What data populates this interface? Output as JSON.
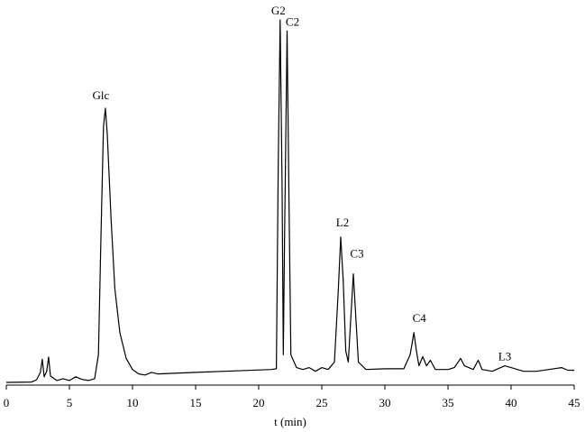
{
  "chart_data": {
    "type": "line",
    "title": "",
    "xlabel": "t (min)",
    "ylabel": "",
    "xlim": [
      0,
      45
    ],
    "ylim": [
      0,
      100
    ],
    "x_ticks": [
      "0",
      "5",
      "10",
      "15",
      "20",
      "25",
      "30",
      "35",
      "40",
      "45"
    ],
    "grid": false,
    "legend": "none",
    "line_color": "#000000",
    "series": [
      {
        "points": [
          [
            0.0,
            0.5
          ],
          [
            2.0,
            0.6
          ],
          [
            2.4,
            1.2
          ],
          [
            2.7,
            3.2
          ],
          [
            2.85,
            6.8
          ],
          [
            3.0,
            2.0
          ],
          [
            3.2,
            3.5
          ],
          [
            3.35,
            7.4
          ],
          [
            3.5,
            2.2
          ],
          [
            4.0,
            1.0
          ],
          [
            4.5,
            1.5
          ],
          [
            5.0,
            1.0
          ],
          [
            5.5,
            2.0
          ],
          [
            6.0,
            1.3
          ],
          [
            6.5,
            1.0
          ],
          [
            7.0,
            1.5
          ],
          [
            7.3,
            8.0
          ],
          [
            7.5,
            40.0
          ],
          [
            7.7,
            70.0
          ],
          [
            7.85,
            75.0
          ],
          [
            8.0,
            68.0
          ],
          [
            8.3,
            45.0
          ],
          [
            8.6,
            26.0
          ],
          [
            9.0,
            14.0
          ],
          [
            9.5,
            7.0
          ],
          [
            10.0,
            4.0
          ],
          [
            10.5,
            2.8
          ],
          [
            11.0,
            2.5
          ],
          [
            11.5,
            3.2
          ],
          [
            12.0,
            2.8
          ],
          [
            15.0,
            3.2
          ],
          [
            18.0,
            3.6
          ],
          [
            21.0,
            4.0
          ],
          [
            21.4,
            4.2
          ],
          [
            21.55,
            60.0
          ],
          [
            21.7,
            99.0
          ],
          [
            21.85,
            55.0
          ],
          [
            21.95,
            8.0
          ],
          [
            22.05,
            40.0
          ],
          [
            22.25,
            96.0
          ],
          [
            22.4,
            50.0
          ],
          [
            22.55,
            8.0
          ],
          [
            23.0,
            4.5
          ],
          [
            23.5,
            4.0
          ],
          [
            24.0,
            4.5
          ],
          [
            24.5,
            3.5
          ],
          [
            25.0,
            4.5
          ],
          [
            25.5,
            4.0
          ],
          [
            26.0,
            6.0
          ],
          [
            26.3,
            25.0
          ],
          [
            26.5,
            40.0
          ],
          [
            26.7,
            28.0
          ],
          [
            26.9,
            9.0
          ],
          [
            27.1,
            6.0
          ],
          [
            27.3,
            18.0
          ],
          [
            27.5,
            30.0
          ],
          [
            27.7,
            18.0
          ],
          [
            27.9,
            6.0
          ],
          [
            28.5,
            4.0
          ],
          [
            30.0,
            4.2
          ],
          [
            31.5,
            4.2
          ],
          [
            32.0,
            8.0
          ],
          [
            32.3,
            14.0
          ],
          [
            32.5,
            9.0
          ],
          [
            32.7,
            5.0
          ],
          [
            33.0,
            7.5
          ],
          [
            33.3,
            5.0
          ],
          [
            33.6,
            6.5
          ],
          [
            34.0,
            4.0
          ],
          [
            35.0,
            4.0
          ],
          [
            35.5,
            4.5
          ],
          [
            36.0,
            7.0
          ],
          [
            36.3,
            5.0
          ],
          [
            37.0,
            4.0
          ],
          [
            37.4,
            6.5
          ],
          [
            37.7,
            4.0
          ],
          [
            38.5,
            3.5
          ],
          [
            39.5,
            5.0
          ],
          [
            40.0,
            4.5
          ],
          [
            40.5,
            4.0
          ],
          [
            41.0,
            3.5
          ],
          [
            42.0,
            3.5
          ],
          [
            43.0,
            4.0
          ],
          [
            44.0,
            4.5
          ],
          [
            44.5,
            3.8
          ],
          [
            45.0,
            3.8
          ]
        ]
      }
    ],
    "annotations": [
      {
        "text": "Glc",
        "x": 7.85,
        "y": 75.0
      },
      {
        "text": "G2",
        "x": 21.7,
        "y": 99.0
      },
      {
        "text": "C2",
        "x": 22.25,
        "y": 96.0
      },
      {
        "text": "L2",
        "x": 26.5,
        "y": 40.0
      },
      {
        "text": "C3",
        "x": 27.5,
        "y": 30.0
      },
      {
        "text": "C4",
        "x": 32.3,
        "y": 14.0
      },
      {
        "text": "L3",
        "x": 39.5,
        "y": 5.0
      }
    ]
  }
}
